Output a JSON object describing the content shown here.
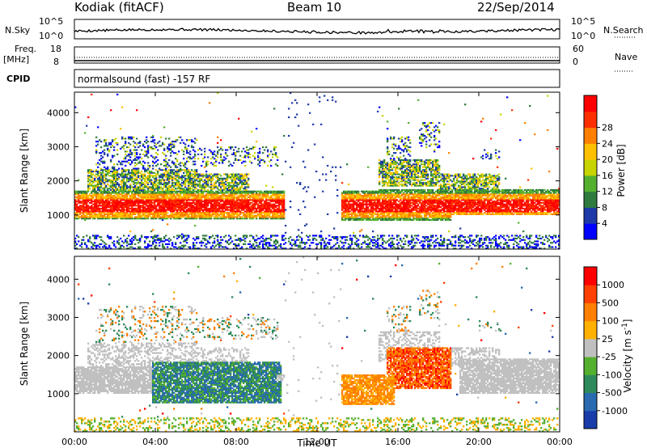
{
  "header": {
    "station": "Kodiak (fitACF)",
    "beam": "Beam 10",
    "date": "22/Sep/2014"
  },
  "strips": {
    "nsky_label": "N.Sky",
    "nsky_ticks": [
      "10^5",
      "10^0"
    ],
    "nsearch_label": "N.Search",
    "nsearch_ticks": [
      "10^5",
      "10^0"
    ],
    "freq_label": "Freq.",
    "freq_unit": "[MHz]",
    "freq_ticks": [
      "18",
      "8"
    ],
    "nave_label": "Nave",
    "nave_ticks": [
      "60",
      "0"
    ],
    "cpid_label": "CPID",
    "cpid_text": "normalsound (fast) -157 RF"
  },
  "chart_data": [
    {
      "type": "heatmap",
      "panel": "power",
      "ylabel": "Slant Range [km]",
      "xlabel": "",
      "xlim": [
        "00:00",
        "24:00"
      ],
      "ylim": [
        0,
        4600
      ],
      "yticks": [
        "1000",
        "2000",
        "3000",
        "4000"
      ],
      "colorbar": {
        "label": "Power [dB]",
        "ticks": [
          "4",
          "8",
          "12",
          "16",
          "20",
          "24",
          "28"
        ],
        "colors": [
          "#0000ff",
          "#1e3aa8",
          "#2f7a3f",
          "#55b030",
          "#c8d400",
          "#ffc000",
          "#ff8000",
          "#ff3000",
          "#ff0000"
        ]
      }
    },
    {
      "type": "heatmap",
      "panel": "velocity",
      "ylabel": "Slant Range [km]",
      "xlabel": "Time UT",
      "xlim": [
        "00:00",
        "24:00"
      ],
      "ylim": [
        0,
        4600
      ],
      "yticks": [
        "1000",
        "2000",
        "3000",
        "4000"
      ],
      "xticks": [
        "00:00",
        "04:00",
        "08:00",
        "12:00",
        "16:00",
        "20:00",
        "00:00"
      ],
      "colorbar": {
        "label": "Velocity [m s^-1]",
        "ticks": [
          "1000",
          "500",
          "100",
          "25",
          "-25",
          "-100",
          "-500",
          "-1000"
        ],
        "colors": [
          "#1a3caa",
          "#2a6ab0",
          "#2e8a5a",
          "#55b030",
          "#c0c0c0",
          "#ffb000",
          "#ff8000",
          "#ff4000",
          "#ff0000"
        ]
      }
    }
  ]
}
